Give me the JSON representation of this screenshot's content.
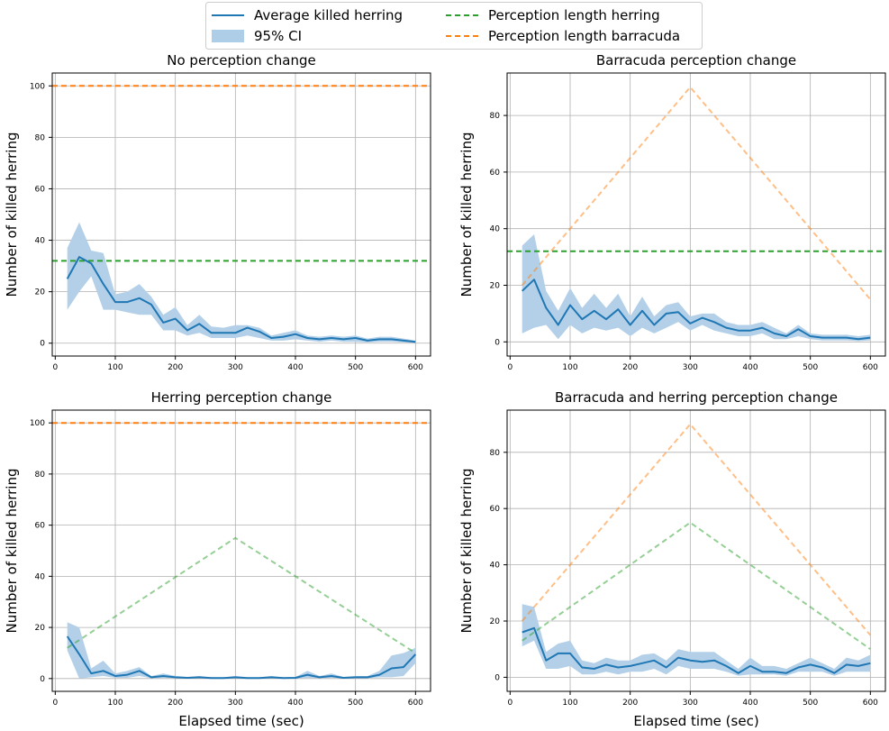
{
  "legend": {
    "placement": "top-center",
    "entries": [
      {
        "label": "Average killed herring",
        "kind": "line",
        "color": "#1f77b4"
      },
      {
        "label": "95% CI",
        "kind": "band",
        "color": "#aecde7"
      },
      {
        "label": "Perception length herring",
        "kind": "dashed",
        "color": "#2ca02c"
      },
      {
        "label": "Perception length barracuda",
        "kind": "dashed",
        "color": "#ff7f0e"
      }
    ]
  },
  "colors": {
    "mean": "#1f77b4",
    "ci": "#b3d0e8",
    "herring": "#2ca02c",
    "barracuda": "#ff7f0e",
    "grid": "#b0b0b0"
  },
  "chart_data": [
    {
      "type": "line",
      "title": "No perception change",
      "xlabel": "",
      "ylabel": "Number of killed herring",
      "xlim": [
        -5,
        625
      ],
      "ylim": [
        -5,
        105
      ],
      "xticks": [
        0,
        100,
        200,
        300,
        400,
        500,
        600
      ],
      "yticks": [
        0,
        20,
        40,
        60,
        80,
        100
      ],
      "grid": true,
      "x": [
        20,
        40,
        60,
        80,
        100,
        120,
        140,
        160,
        180,
        200,
        220,
        240,
        260,
        280,
        300,
        320,
        340,
        360,
        380,
        400,
        420,
        440,
        460,
        480,
        500,
        520,
        540,
        560,
        580,
        600
      ],
      "mean": [
        25,
        33.5,
        31,
        23,
        16,
        16,
        17.5,
        15,
        8,
        9.5,
        5,
        7.5,
        4,
        4,
        4,
        6,
        4.5,
        2,
        2.5,
        3.5,
        2,
        1.5,
        2,
        1.5,
        2,
        1,
        1.5,
        1.5,
        1,
        0.5
      ],
      "ci_lower": [
        13,
        20,
        26,
        13,
        13,
        12,
        11,
        11,
        5,
        5,
        3,
        4,
        2,
        2,
        2,
        3,
        2,
        1,
        1,
        1.5,
        1,
        0.5,
        1,
        0.5,
        0.5,
        0.3,
        0.5,
        0.5,
        0.3,
        0.1
      ],
      "ci_upper": [
        37,
        47,
        36,
        35,
        19,
        20,
        23,
        18,
        11,
        14,
        7,
        11,
        6.5,
        6,
        7,
        7,
        6,
        3,
        4,
        5,
        3,
        2.5,
        3,
        2.5,
        3,
        1.8,
        2.5,
        2.5,
        1.8,
        1
      ],
      "herring_perception": {
        "x": [
          -5,
          625
        ],
        "y": [
          32,
          32
        ],
        "alpha": 1
      },
      "barracuda_perception": {
        "x": [
          -5,
          625
        ],
        "y": [
          100,
          100
        ],
        "alpha": 1
      }
    },
    {
      "type": "line",
      "title": "Barracuda perception change",
      "xlabel": "",
      "ylabel": "Number of killed herring",
      "xlim": [
        -5,
        625
      ],
      "ylim": [
        -5,
        95
      ],
      "xticks": [
        0,
        100,
        200,
        300,
        400,
        500,
        600
      ],
      "yticks": [
        0,
        20,
        40,
        60,
        80
      ],
      "grid": true,
      "x": [
        20,
        40,
        60,
        80,
        100,
        120,
        140,
        160,
        180,
        200,
        220,
        240,
        260,
        280,
        300,
        320,
        340,
        360,
        380,
        400,
        420,
        440,
        460,
        480,
        500,
        520,
        540,
        560,
        580,
        600
      ],
      "mean": [
        18,
        22,
        12,
        6,
        13,
        8,
        11,
        8,
        11.5,
        6,
        11,
        6,
        10,
        10.5,
        6.5,
        8.5,
        7,
        5,
        4,
        4,
        5,
        3,
        2,
        4.5,
        2,
        1.5,
        1.5,
        1.5,
        1,
        1.5
      ],
      "ci_lower": [
        3,
        5,
        6,
        1,
        6,
        3,
        5,
        4,
        5,
        2,
        5,
        3,
        5,
        7,
        4,
        6,
        4,
        3,
        2,
        2,
        3,
        1,
        1,
        2,
        1,
        0.5,
        0.5,
        0.5,
        0.3,
        0.5
      ],
      "ci_upper": [
        34,
        38,
        18,
        11,
        19,
        12,
        17,
        12,
        17,
        9,
        16,
        9,
        13,
        14,
        9,
        10,
        10,
        7,
        6,
        6,
        7,
        5,
        3,
        6,
        3,
        2.5,
        2.5,
        2.5,
        2,
        2.5
      ],
      "herring_perception": {
        "x": [
          -5,
          625
        ],
        "y": [
          32,
          32
        ],
        "alpha": 1
      },
      "barracuda_perception": {
        "x": [
          20,
          300,
          600
        ],
        "y": [
          20,
          90,
          15
        ],
        "alpha": 0.5
      }
    },
    {
      "type": "line",
      "title": "Herring perception change",
      "xlabel": "Elapsed time (sec)",
      "ylabel": "Number of killed herring",
      "xlim": [
        -5,
        625
      ],
      "ylim": [
        -5,
        105
      ],
      "xticks": [
        0,
        100,
        200,
        300,
        400,
        500,
        600
      ],
      "yticks": [
        0,
        20,
        40,
        60,
        80,
        100
      ],
      "grid": true,
      "x": [
        20,
        40,
        60,
        80,
        100,
        120,
        140,
        160,
        180,
        200,
        220,
        240,
        260,
        280,
        300,
        320,
        340,
        360,
        380,
        400,
        420,
        440,
        460,
        480,
        500,
        520,
        540,
        560,
        580,
        600
      ],
      "mean": [
        16.5,
        9.5,
        2,
        3,
        1,
        1.5,
        3,
        0.5,
        1,
        0.5,
        0.3,
        0.5,
        0.2,
        0.2,
        0.5,
        0.2,
        0.2,
        0.5,
        0.2,
        0.3,
        1.5,
        0.5,
        1,
        0.3,
        0.5,
        0.5,
        1.5,
        4,
        4.5,
        9.5
      ],
      "ci_lower": [
        11,
        0,
        0.5,
        1,
        0.3,
        0.3,
        1,
        0.1,
        0.3,
        0.1,
        0.1,
        0.1,
        0,
        0,
        0.1,
        0,
        0,
        0.1,
        0,
        0.1,
        0.3,
        0.1,
        0.3,
        0.1,
        0.1,
        0.1,
        0.5,
        0.5,
        1,
        6
      ],
      "ci_upper": [
        22,
        20,
        4,
        7,
        2,
        3,
        4.5,
        1,
        2,
        1,
        0.6,
        1,
        0.5,
        0.5,
        1,
        0.5,
        0.5,
        1,
        0.5,
        0.6,
        3,
        1,
        2,
        0.6,
        1,
        1,
        3,
        9,
        10,
        12
      ],
      "herring_perception": {
        "x": [
          20,
          300,
          600
        ],
        "y": [
          12,
          55,
          10
        ],
        "alpha": 0.5
      },
      "barracuda_perception": {
        "x": [
          -5,
          625
        ],
        "y": [
          100,
          100
        ],
        "alpha": 1
      }
    },
    {
      "type": "line",
      "title": "Barracuda and herring perception change",
      "xlabel": "Elapsed time (sec)",
      "ylabel": "Number of killed herring",
      "xlim": [
        -5,
        625
      ],
      "ylim": [
        -5,
        95
      ],
      "xticks": [
        0,
        100,
        200,
        300,
        400,
        500,
        600
      ],
      "yticks": [
        0,
        20,
        40,
        60,
        80
      ],
      "grid": true,
      "x": [
        20,
        40,
        60,
        80,
        100,
        120,
        140,
        160,
        180,
        200,
        220,
        240,
        260,
        280,
        300,
        320,
        340,
        360,
        380,
        400,
        420,
        440,
        460,
        480,
        500,
        520,
        540,
        560,
        580,
        600
      ],
      "mean": [
        16,
        17.5,
        6,
        8.5,
        8.5,
        3.5,
        3,
        4.5,
        3.5,
        4,
        5,
        6,
        3.5,
        7,
        6,
        5.5,
        6,
        4,
        1.5,
        4,
        2,
        2,
        1.5,
        3.5,
        4.5,
        3.5,
        1.5,
        4.5,
        4,
        5
      ],
      "ci_lower": [
        11,
        13,
        3,
        3,
        4,
        1,
        1,
        2,
        1,
        2,
        2,
        3,
        1,
        4,
        3,
        3,
        3,
        2,
        0.5,
        1,
        1,
        1,
        0.5,
        2,
        2,
        2,
        0.5,
        2,
        2,
        2
      ],
      "ci_upper": [
        26,
        25,
        9,
        12,
        13,
        6,
        5,
        7,
        6,
        6,
        8,
        8.5,
        6,
        10,
        9,
        9,
        9,
        6,
        3,
        7,
        4,
        4,
        3,
        5,
        7,
        5,
        3,
        7,
        6,
        8
      ],
      "herring_perception": {
        "x": [
          20,
          300,
          600
        ],
        "y": [
          13,
          55,
          10
        ],
        "alpha": 0.5
      },
      "barracuda_perception": {
        "x": [
          20,
          300,
          600
        ],
        "y": [
          20,
          90,
          15
        ],
        "alpha": 0.5
      }
    }
  ]
}
